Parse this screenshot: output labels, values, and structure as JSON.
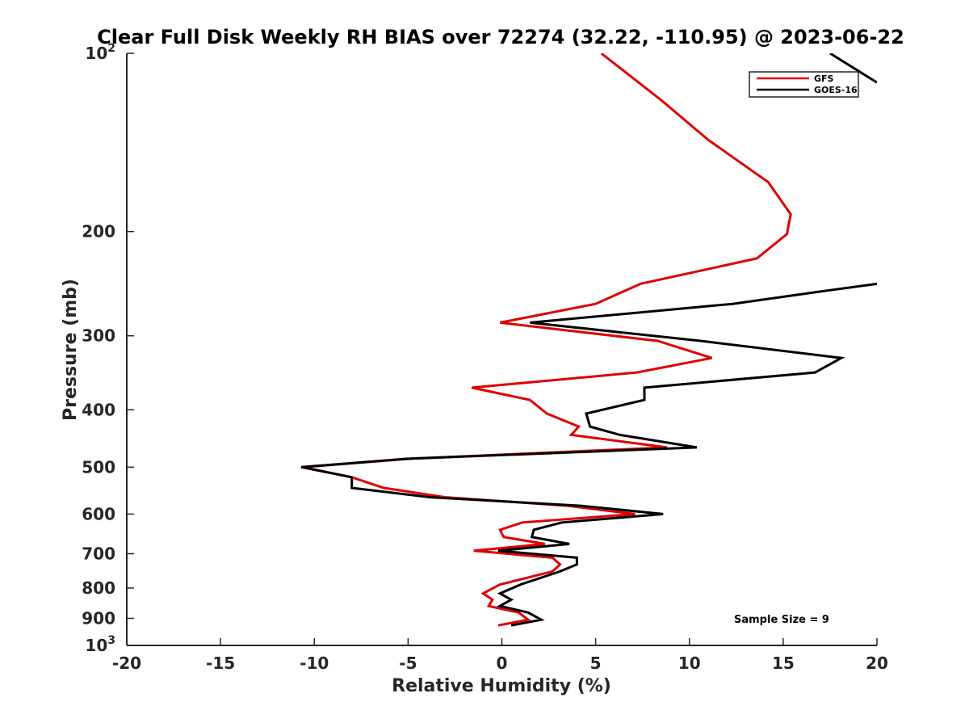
{
  "chart_data": {
    "type": "line",
    "title": "Clear Full Disk Weekly RH BIAS over 72274 (32.22, -110.95) @ 2023-06-22",
    "xlabel": "Relative Humidity (%)",
    "ylabel": "Pressure (mb)",
    "xlim": [
      -20,
      20
    ],
    "ylim": [
      1000,
      100
    ],
    "y_scale": "log",
    "y_reversed": true,
    "grid": false,
    "x_ticks": [
      -20,
      -15,
      -10,
      -5,
      0,
      5,
      10,
      15,
      20
    ],
    "x_tick_labels": [
      "-20",
      "-15",
      "-10",
      "-5",
      "0",
      "5",
      "10",
      "15",
      "20"
    ],
    "y_ticks": [
      100,
      200,
      300,
      400,
      500,
      600,
      700,
      800,
      900,
      1000
    ],
    "y_tick_labels": [
      {
        "value": 100,
        "base": "10",
        "exp": "2"
      },
      {
        "value": 200,
        "base": "200",
        "exp": ""
      },
      {
        "value": 300,
        "base": "300",
        "exp": ""
      },
      {
        "value": 400,
        "base": "400",
        "exp": ""
      },
      {
        "value": 500,
        "base": "500",
        "exp": ""
      },
      {
        "value": 600,
        "base": "600",
        "exp": ""
      },
      {
        "value": 700,
        "base": "700",
        "exp": ""
      },
      {
        "value": 800,
        "base": "800",
        "exp": ""
      },
      {
        "value": 900,
        "base": "900",
        "exp": ""
      },
      {
        "value": 1000,
        "base": "10",
        "exp": "3"
      }
    ],
    "legend_position": "top-right",
    "annotation": "Sample Size = 9",
    "series": [
      {
        "name": "GFS",
        "color": "#e00000",
        "points": [
          [
            5.3,
            100
          ],
          [
            8.5,
            120
          ],
          [
            11.0,
            140
          ],
          [
            14.2,
            165
          ],
          [
            15.4,
            187
          ],
          [
            15.2,
            202
          ],
          [
            13.6,
            222
          ],
          [
            7.4,
            245
          ],
          [
            5.0,
            265
          ],
          [
            -0.1,
            285
          ],
          [
            8.3,
            306
          ],
          [
            11.2,
            327
          ],
          [
            7.2,
            346
          ],
          [
            -1.6,
            367
          ],
          [
            1.5,
            385
          ],
          [
            2.4,
            406
          ],
          [
            4.1,
            427
          ],
          [
            3.7,
            441
          ],
          [
            8.8,
            463
          ],
          [
            -5.0,
            484
          ],
          [
            -10.6,
            500
          ],
          [
            -8.0,
            520
          ],
          [
            -6.3,
            542
          ],
          [
            -3.0,
            562
          ],
          [
            3.5,
            581
          ],
          [
            7.1,
            600
          ],
          [
            1.1,
            620
          ],
          [
            -0.1,
            638
          ],
          [
            0.1,
            656
          ],
          [
            2.3,
            674
          ],
          [
            -1.5,
            692
          ],
          [
            2.7,
            711
          ],
          [
            3.1,
            730
          ],
          [
            2.7,
            750
          ],
          [
            -0.1,
            789
          ],
          [
            -1.0,
            817
          ],
          [
            -0.5,
            837
          ],
          [
            -0.7,
            858
          ],
          [
            0.9,
            880
          ],
          [
            1.4,
            905
          ],
          [
            -0.2,
            925
          ]
        ]
      },
      {
        "name": "GOES-16",
        "color": "#000000",
        "points": [
          [
            17.5,
            100
          ],
          [
            20.0,
            112
          ]
        ]
      },
      {
        "name": "GOES-16",
        "color": "#000000",
        "points": [
          [
            20.0,
            245
          ],
          [
            16.8,
            253
          ],
          [
            12.3,
            265
          ],
          [
            1.5,
            285
          ],
          [
            10.6,
            306
          ],
          [
            18.1,
            327
          ],
          [
            16.7,
            346
          ],
          [
            7.6,
            367
          ],
          [
            7.6,
            385
          ],
          [
            4.5,
            406
          ],
          [
            4.7,
            427
          ],
          [
            6.3,
            441
          ],
          [
            10.4,
            463
          ],
          [
            -5.1,
            484
          ],
          [
            -10.7,
            500
          ],
          [
            -8.0,
            520
          ],
          [
            -8.0,
            542
          ],
          [
            -3.8,
            562
          ],
          [
            4.2,
            581
          ],
          [
            8.6,
            600
          ],
          [
            3.2,
            620
          ],
          [
            1.7,
            638
          ],
          [
            1.6,
            656
          ],
          [
            3.6,
            674
          ],
          [
            -0.2,
            692
          ],
          [
            4.0,
            711
          ],
          [
            4.0,
            730
          ],
          [
            3.1,
            750
          ],
          [
            1.0,
            789
          ],
          [
            -0.1,
            817
          ],
          [
            0.5,
            837
          ],
          [
            -0.1,
            858
          ],
          [
            1.4,
            880
          ],
          [
            2.1,
            905
          ],
          [
            0.5,
            925
          ]
        ]
      }
    ]
  }
}
